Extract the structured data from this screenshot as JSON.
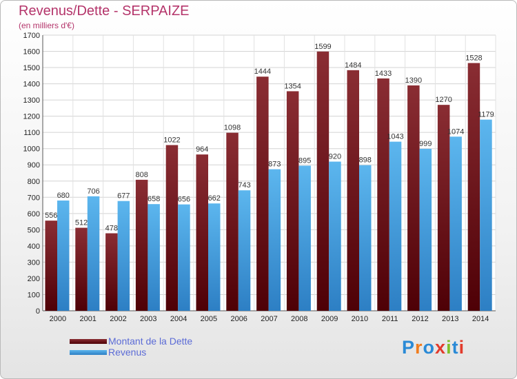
{
  "header": {
    "title": "Revenus/Dette - SERPAIZE",
    "subtitle": "(en milliers d'€)"
  },
  "brand": {
    "name": "Proxiti",
    "letters": [
      "P",
      "r",
      "o",
      "x",
      "i",
      "t",
      "i"
    ],
    "letter_colors": [
      "#2a8ad6",
      "#f07c1d",
      "#2a8ad6",
      "#e23b2c",
      "#7fbf2a",
      "#2a8ad6",
      "#e23b2c"
    ]
  },
  "legend": {
    "position": "bottom-left",
    "items": [
      {
        "label": "Montant de la Dette",
        "color": "#6e0f16"
      },
      {
        "label": "Revenus",
        "color": "#4da8e6"
      }
    ]
  },
  "chart_data": {
    "type": "bar",
    "title": "Revenus/Dette - SERPAIZE",
    "subtitle": "(en milliers d'€)",
    "xlabel": "",
    "ylabel": "",
    "ylim": [
      0,
      1700
    ],
    "ytick_step": 100,
    "grid": true,
    "categories": [
      "2000",
      "2001",
      "2002",
      "2003",
      "2004",
      "2005",
      "2006",
      "2007",
      "2008",
      "2009",
      "2010",
      "2011",
      "2012",
      "2013",
      "2014"
    ],
    "series": [
      {
        "name": "Montant de la Dette",
        "color": "#6e0f16",
        "values": [
          556,
          512,
          478,
          808,
          1022,
          964,
          1098,
          1444,
          1354,
          1599,
          1484,
          1433,
          1390,
          1270,
          1528
        ]
      },
      {
        "name": "Revenus",
        "color": "#4da8e6",
        "values": [
          680,
          706,
          677,
          658,
          656,
          662,
          743,
          873,
          895,
          920,
          898,
          1043,
          999,
          1074,
          1179
        ]
      }
    ]
  }
}
